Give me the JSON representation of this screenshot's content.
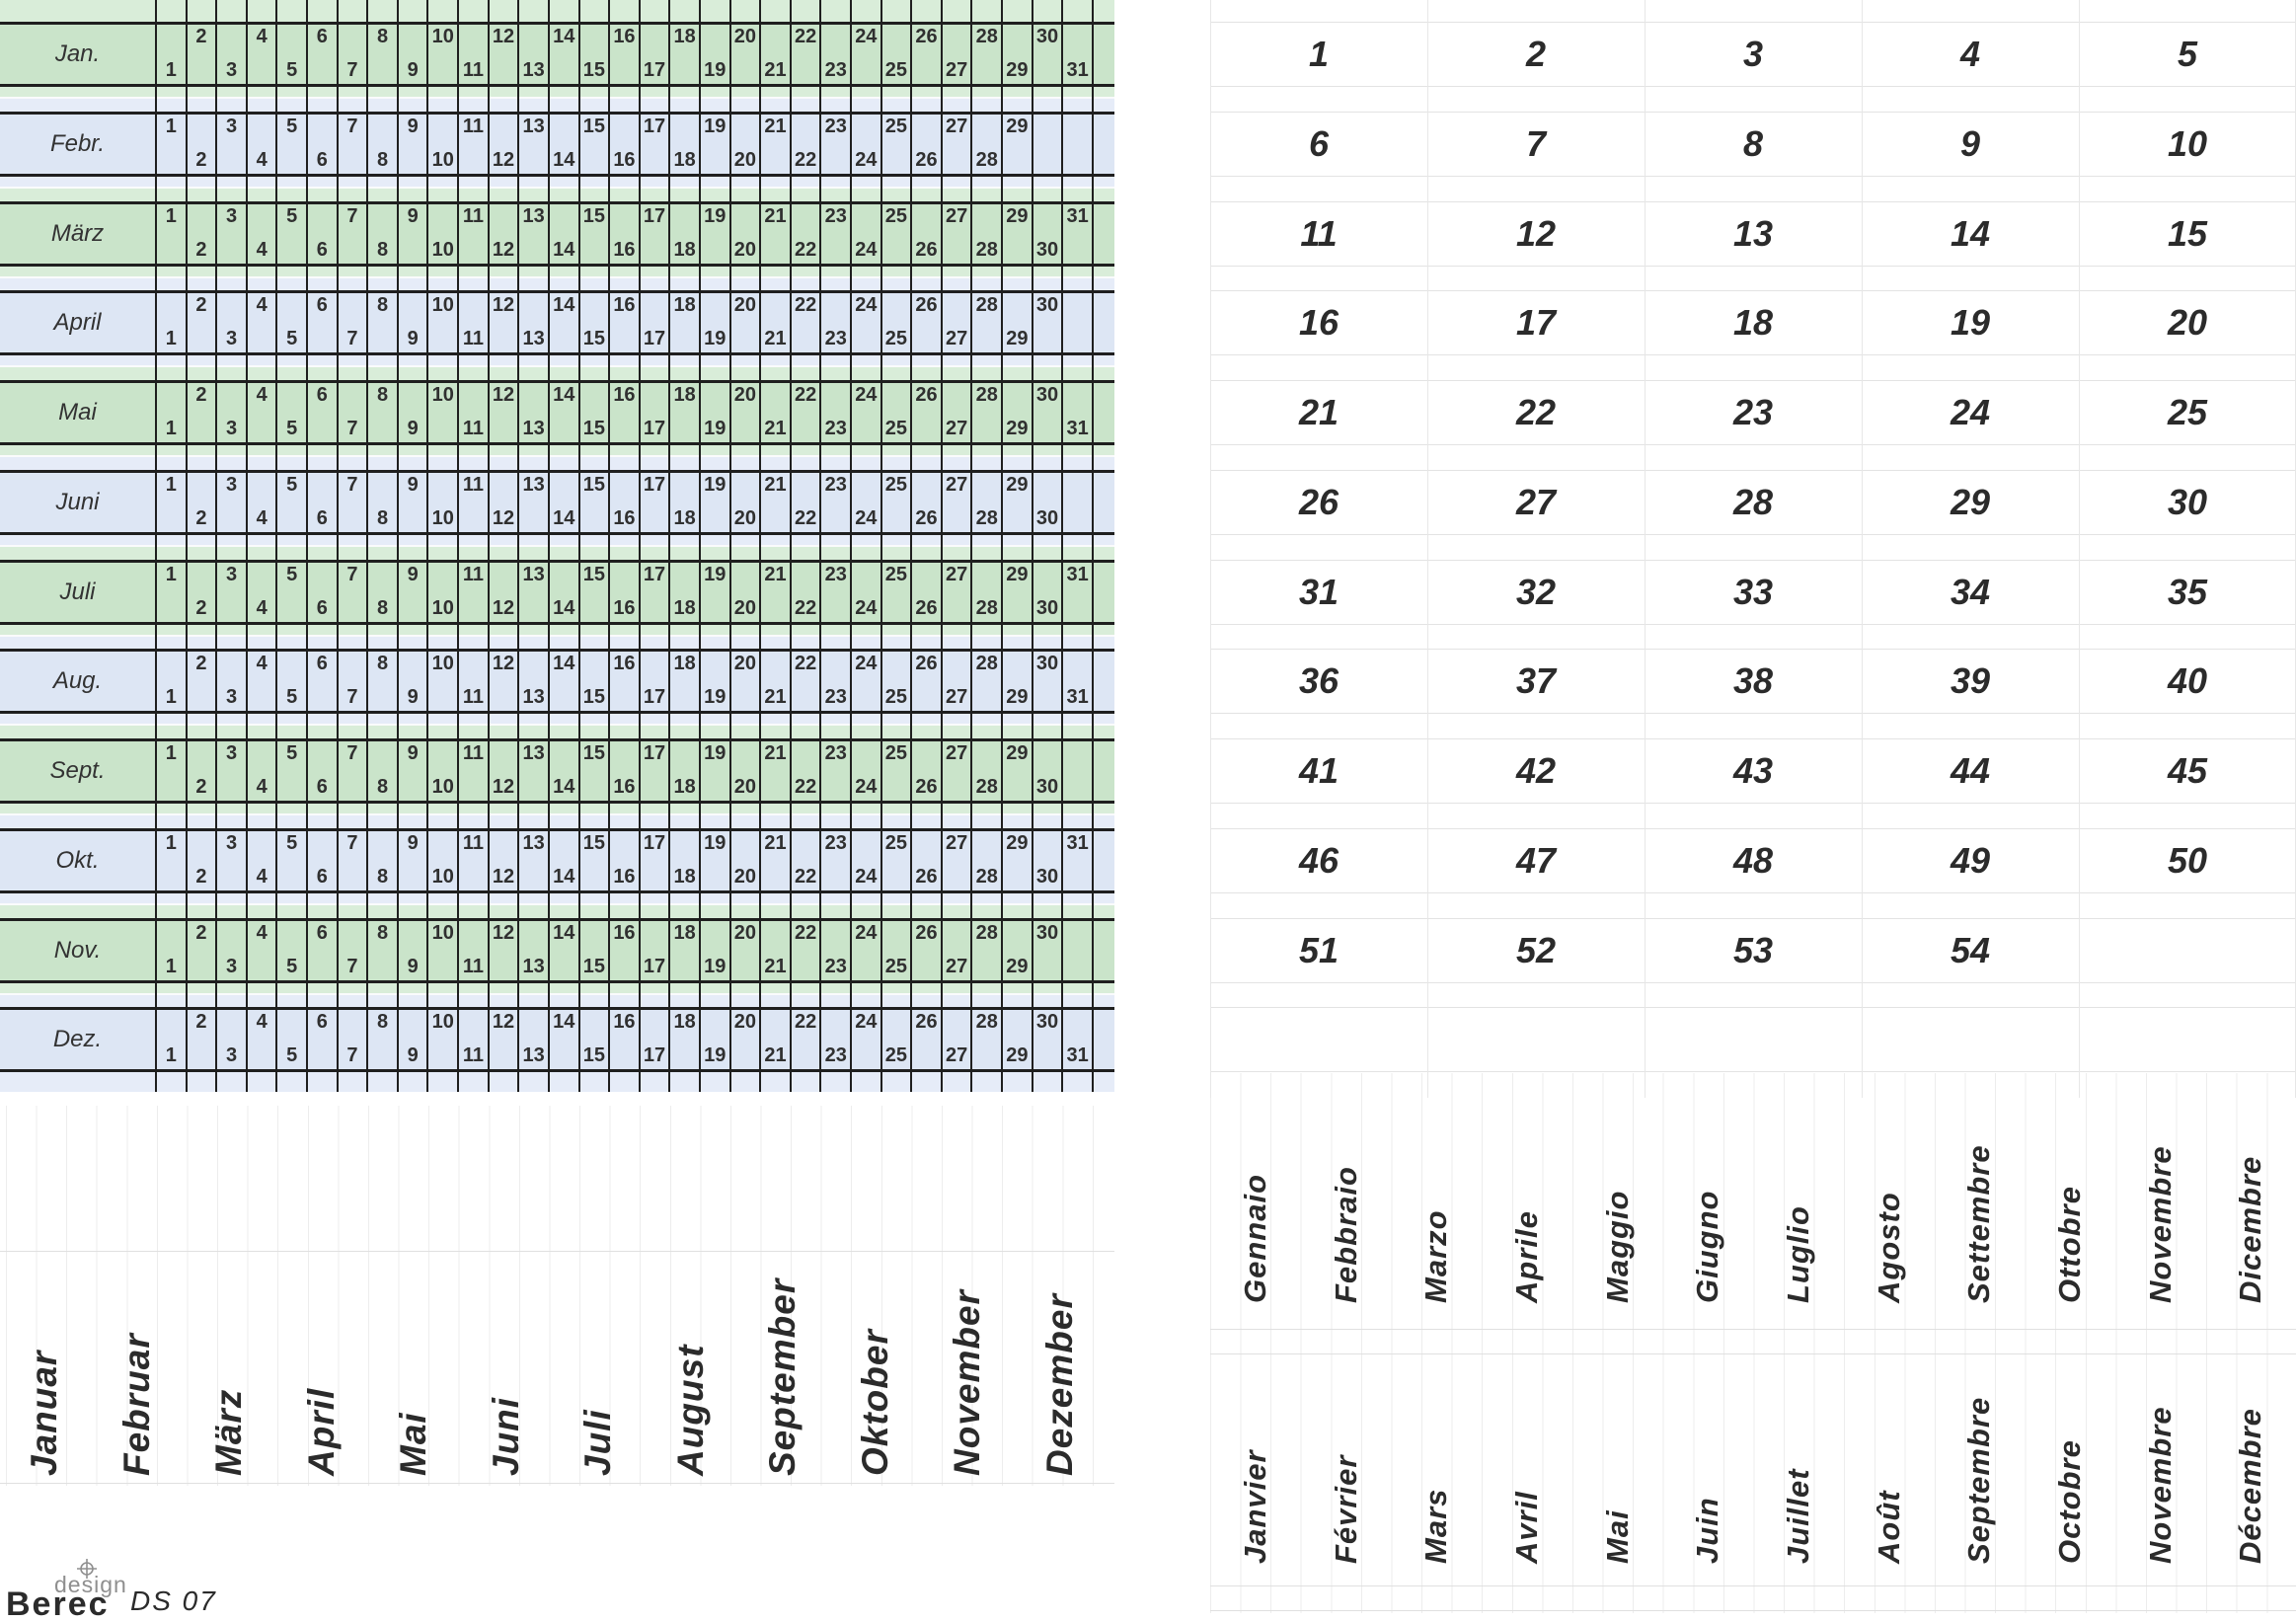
{
  "branding": {
    "design_label": "design",
    "brand": "Berec",
    "model": "DS 07",
    "crosshair_icon": "crosshair-icon"
  },
  "colors": {
    "band_green": "#cae4ca",
    "band_blue": "#dde6f4",
    "strip_green": "#d9edd9",
    "strip_blue": "#e6ecf8",
    "grid_line": "#1f1f1f",
    "faint_line": "#e0e0e0",
    "fine_line": "#ededed",
    "text_dark": "#2b2b2b"
  },
  "calendar": {
    "columns": 31,
    "months": [
      {
        "label": "Jan.",
        "days": 31,
        "odd_position": "low",
        "color": "green"
      },
      {
        "label": "Febr.",
        "days": 29,
        "odd_position": "high",
        "color": "blue"
      },
      {
        "label": "März",
        "days": 31,
        "odd_position": "high",
        "color": "green"
      },
      {
        "label": "April",
        "days": 30,
        "odd_position": "low",
        "color": "blue"
      },
      {
        "label": "Mai",
        "days": 31,
        "odd_position": "low",
        "color": "green"
      },
      {
        "label": "Juni",
        "days": 30,
        "odd_position": "high",
        "color": "blue"
      },
      {
        "label": "Juli",
        "days": 31,
        "odd_position": "high",
        "color": "green"
      },
      {
        "label": "Aug.",
        "days": 31,
        "odd_position": "low",
        "color": "blue"
      },
      {
        "label": "Sept.",
        "days": 30,
        "odd_position": "high",
        "color": "green"
      },
      {
        "label": "Okt.",
        "days": 31,
        "odd_position": "high",
        "color": "blue"
      },
      {
        "label": "Nov.",
        "days": 30,
        "odd_position": "low",
        "color": "green"
      },
      {
        "label": "Dez.",
        "days": 31,
        "odd_position": "low",
        "color": "blue"
      }
    ]
  },
  "week_grid": {
    "columns": 5,
    "rows": [
      [
        1,
        2,
        3,
        4,
        5
      ],
      [
        6,
        7,
        8,
        9,
        10
      ],
      [
        11,
        12,
        13,
        14,
        15
      ],
      [
        16,
        17,
        18,
        19,
        20
      ],
      [
        21,
        22,
        23,
        24,
        25
      ],
      [
        26,
        27,
        28,
        29,
        30
      ],
      [
        31,
        32,
        33,
        34,
        35
      ],
      [
        36,
        37,
        38,
        39,
        40
      ],
      [
        41,
        42,
        43,
        44,
        45
      ],
      [
        46,
        47,
        48,
        49,
        50
      ],
      [
        51,
        52,
        53,
        54,
        null
      ]
    ]
  },
  "month_names": {
    "german": [
      "Januar",
      "Februar",
      "März",
      "April",
      "Mai",
      "Juni",
      "Juli",
      "August",
      "September",
      "Oktober",
      "November",
      "Dezember"
    ],
    "italian": [
      "Gennaio",
      "Febbraio",
      "Marzo",
      "Aprile",
      "Maggio",
      "Giugno",
      "Luglio",
      "Agosto",
      "Settembre",
      "Ottobre",
      "Novembre",
      "Dicembre"
    ],
    "french": [
      "Janvier",
      "Février",
      "Mars",
      "Avril",
      "Mai",
      "Juin",
      "Juillet",
      "Août",
      "Septembre",
      "Octobre",
      "Novembre",
      "Décembre"
    ]
  }
}
